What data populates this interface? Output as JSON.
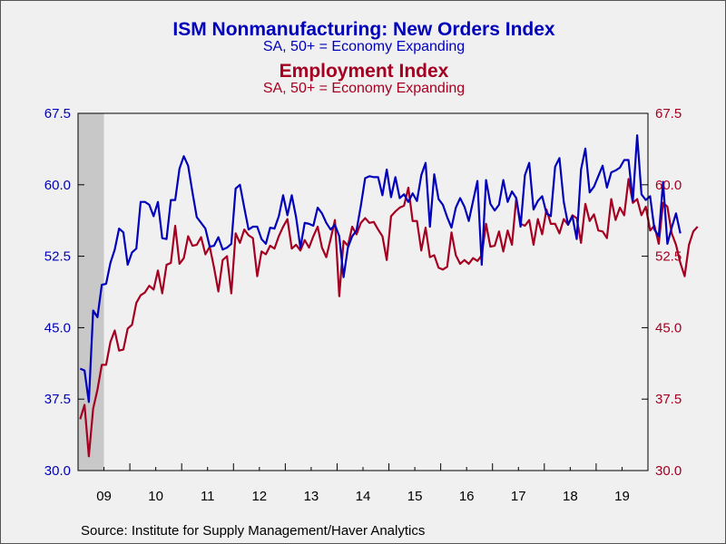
{
  "titles": {
    "series1_title": "ISM Nonmanufacturing: New Orders Index",
    "series1_subtitle": "SA, 50+ = Economy Expanding",
    "series2_title": "Employment Index",
    "series2_subtitle": "SA, 50+ = Economy Expanding"
  },
  "source": "Source:  Institute for Supply Management/Haver Analytics",
  "colors": {
    "series1": "#0000bb",
    "series2": "#a50021",
    "recession_shade": "#c8c8c8",
    "axis": "#000000"
  },
  "chart_data": {
    "type": "line",
    "x_start": "2009-01",
    "x_end": "2019-12",
    "frequency": "monthly",
    "x_tick_labels": [
      "09",
      "10",
      "11",
      "12",
      "13",
      "14",
      "15",
      "16",
      "17",
      "18",
      "19"
    ],
    "y_left": {
      "ticks": [
        "67.5",
        "60.0",
        "52.5",
        "45.0",
        "37.5",
        "30.0"
      ],
      "range": [
        30.0,
        67.5
      ]
    },
    "y_right": {
      "ticks": [
        "67.5",
        "60.0",
        "52.5",
        "45.0",
        "37.5",
        "30.0"
      ],
      "range": [
        30.0,
        67.5
      ]
    },
    "recession_shading": [
      [
        "2009-01",
        "2009-06"
      ]
    ],
    "grid": false,
    "series": [
      {
        "values": [
          40.7,
          40.5,
          37.2,
          46.8,
          46.1,
          49.5,
          49.6,
          51.8,
          53.2,
          55.4,
          55.0,
          51.6,
          52.9,
          53.3,
          58.2,
          58.2,
          57.9,
          56.7,
          58.2,
          54.4,
          54.3,
          58.4,
          58.4,
          61.7,
          63.0,
          62.0,
          59.2,
          56.6,
          56.0,
          55.4,
          53.5,
          53.6,
          54.5,
          53.2,
          53.4,
          53.8,
          59.6,
          60.0,
          57.6,
          55.3,
          55.6,
          55.6,
          54.3,
          53.8,
          55.5,
          55.4,
          56.7,
          58.9,
          56.8,
          58.9,
          56.6,
          53.4,
          56.0,
          55.9,
          55.7,
          57.6,
          57.0,
          56.0,
          55.3,
          55.8,
          54.6,
          50.3,
          53.4,
          54.6,
          55.2,
          57.8,
          60.7,
          60.9,
          60.8,
          60.8,
          58.9,
          61.6,
          58.7,
          60.8,
          58.6,
          59.0,
          58.2,
          59.1,
          58.3,
          61.0,
          62.3,
          55.6,
          61.1,
          58.5,
          57.9,
          56.6,
          55.5,
          57.6,
          58.6,
          57.7,
          56.2,
          58.3,
          60.4,
          51.6,
          60.5,
          58.0,
          57.3,
          57.9,
          60.5,
          58.2,
          59.3,
          58.6,
          55.6,
          61.0,
          62.3,
          57.4,
          58.3,
          58.8,
          57.0,
          56.7,
          61.9,
          62.8,
          58.2,
          55.8,
          56.7,
          54.3,
          61.6,
          63.8,
          59.2,
          59.8,
          60.9,
          62.0,
          59.7,
          61.3,
          61.5,
          61.8,
          62.6,
          62.6,
          58.3,
          65.2,
          59.0,
          58.4,
          58.8,
          55.3,
          54.6,
          60.3,
          53.8,
          55.5,
          57.0,
          54.9
        ]
      },
      {
        "values": [
          35.4,
          36.9,
          31.5,
          36.5,
          38.5,
          41.1,
          41.1,
          43.5,
          44.7,
          42.6,
          42.7,
          44.9,
          45.3,
          47.6,
          48.4,
          48.7,
          49.4,
          49.0,
          51.0,
          48.6,
          51.6,
          51.8,
          55.7,
          51.7,
          52.3,
          54.6,
          53.6,
          53.7,
          54.5,
          52.7,
          53.5,
          51.3,
          48.8,
          52.1,
          52.5,
          48.6,
          54.9,
          53.9,
          55.3,
          54.7,
          54.4,
          50.4,
          53.0,
          52.7,
          53.6,
          53.3,
          54.6,
          55.6,
          56.4,
          53.3,
          53.7,
          53.1,
          54.2,
          53.4,
          54.6,
          55.6,
          53.4,
          52.4,
          54.3,
          56.3,
          48.3,
          54.1,
          53.6,
          55.6,
          54.8,
          56.0,
          56.5,
          56.0,
          56.1,
          55.3,
          54.6,
          52.1,
          56.7,
          57.2,
          57.6,
          57.8,
          59.7,
          56.2,
          56.2,
          53.1,
          55.5,
          52.4,
          52.6,
          51.3,
          51.1,
          51.4,
          55.0,
          52.6,
          51.7,
          52.1,
          51.7,
          52.3,
          52.0,
          52.6,
          55.9,
          53.5,
          53.6,
          55.1,
          53.0,
          55.2,
          53.7,
          58.6,
          55.9,
          55.7,
          56.3,
          53.7,
          56.4,
          54.8,
          57.4,
          55.9,
          55.9,
          54.9,
          56.4,
          55.8,
          56.8,
          56.5,
          53.9,
          58.0,
          56.2,
          56.9,
          55.2,
          55.1,
          54.4,
          58.5,
          56.3,
          57.6,
          56.8,
          60.6,
          58.1,
          58.5,
          56.8,
          57.7,
          55.2,
          55.7,
          53.8,
          58.1,
          57.7,
          54.9,
          53.7,
          51.8,
          50.4,
          53.7,
          55.1,
          55.6
        ]
      }
    ]
  }
}
